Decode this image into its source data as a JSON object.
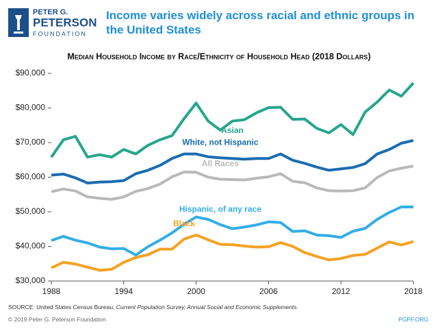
{
  "logo": [
    "PETER G.",
    "PETERSON",
    "FOUNDATION"
  ],
  "source": {
    "prefix": "SOURCE: United States Census Bureau, ",
    "italic": "Current Population Survey, Annual Social and Economic Supplements."
  },
  "footer": {
    "left": "© 2019 Peter G. Peterson Foundation",
    "right": "PGPF.ORG"
  },
  "chart_data": {
    "type": "line",
    "title": "Income varies widely across racial and ethnic groups in the United States",
    "subtitle": "Median Household Income by Race/Ethnicity of Household Head (2018 Dollars)",
    "x": [
      1988,
      1989,
      1990,
      1991,
      1992,
      1993,
      1994,
      1995,
      1996,
      1997,
      1998,
      1999,
      2000,
      2001,
      2002,
      2003,
      2004,
      2005,
      2006,
      2007,
      2008,
      2009,
      2010,
      2011,
      2012,
      2013,
      2014,
      2015,
      2016,
      2017,
      2018
    ],
    "xlim": [
      1988,
      2018
    ],
    "xticks": [
      1988,
      1994,
      2000,
      2006,
      2012,
      2018
    ],
    "ylim": [
      30000,
      90000
    ],
    "yticks": [
      {
        "value": 30000,
        "label": "$30,000"
      },
      {
        "value": 40000,
        "label": "$40,000"
      },
      {
        "value": 50000,
        "label": "$50,000"
      },
      {
        "value": 60000,
        "label": "$60,000"
      },
      {
        "value": 70000,
        "label": "$70,000"
      },
      {
        "value": 80000,
        "label": "$80,000"
      },
      {
        "value": 90000,
        "label": "$90,000"
      }
    ],
    "grid": false,
    "series": [
      {
        "name": "Asian",
        "color": "#26a58e",
        "values": [
          65800,
          70800,
          71800,
          65800,
          66500,
          65800,
          68000,
          66700,
          69200,
          70800,
          72000,
          76900,
          81400,
          76200,
          73600,
          76200,
          76600,
          78600,
          80100,
          80200,
          76700,
          76800,
          74100,
          72800,
          75200,
          72300,
          78800,
          81700,
          85200,
          83400,
          87200
        ]
      },
      {
        "name": "White, not Hispanic",
        "color": "#1a6cb1",
        "values": [
          60600,
          60900,
          59800,
          58300,
          58600,
          58700,
          59000,
          61000,
          62000,
          63400,
          65400,
          66700,
          66700,
          65900,
          65600,
          65400,
          65200,
          65400,
          65400,
          66700,
          64900,
          64000,
          62900,
          62000,
          62400,
          62800,
          63900,
          66700,
          68000,
          69800,
          70600
        ]
      },
      {
        "name": "All Races",
        "color": "#b9b9b9",
        "values": [
          55800,
          56600,
          56000,
          54300,
          53900,
          53600,
          54300,
          55900,
          56700,
          58000,
          60100,
          61500,
          61400,
          60000,
          59400,
          59300,
          59200,
          59700,
          60100,
          61000,
          58800,
          58400,
          56900,
          56100,
          56000,
          56100,
          56900,
          59900,
          61800,
          62600,
          63200
        ]
      },
      {
        "name": "Hispanic, of any race",
        "color": "#33aee6",
        "values": [
          41700,
          42900,
          41800,
          41000,
          39800,
          39300,
          39400,
          37500,
          39900,
          41800,
          43900,
          46400,
          48500,
          47800,
          46300,
          45100,
          45600,
          46200,
          47100,
          46900,
          44300,
          44500,
          43300,
          43100,
          42600,
          44400,
          45200,
          47800,
          49800,
          51400,
          51400
        ]
      },
      {
        "name": "Black",
        "color": "#f4a224",
        "values": [
          33800,
          35400,
          34900,
          34000,
          33100,
          33400,
          35400,
          36800,
          37600,
          39200,
          39200,
          42100,
          43300,
          41900,
          40600,
          40500,
          40100,
          39800,
          39900,
          41100,
          40000,
          38200,
          37100,
          36100,
          36500,
          37400,
          37700,
          39500,
          41300,
          40400,
          41400
        ]
      }
    ]
  }
}
